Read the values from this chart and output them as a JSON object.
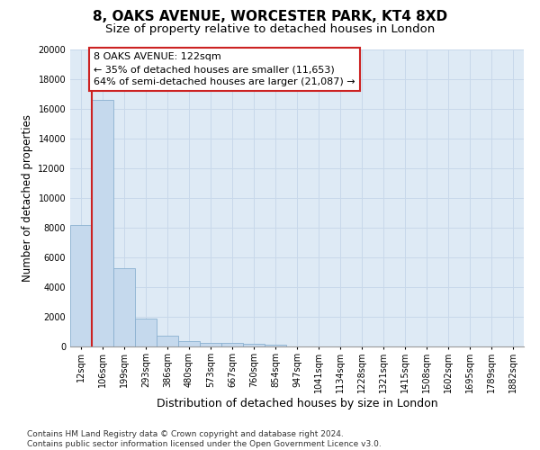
{
  "title1": "8, OAKS AVENUE, WORCESTER PARK, KT4 8XD",
  "title2": "Size of property relative to detached houses in London",
  "xlabel": "Distribution of detached houses by size in London",
  "ylabel": "Number of detached properties",
  "categories": [
    "12sqm",
    "106sqm",
    "199sqm",
    "293sqm",
    "386sqm",
    "480sqm",
    "573sqm",
    "667sqm",
    "760sqm",
    "854sqm",
    "947sqm",
    "1041sqm",
    "1134sqm",
    "1228sqm",
    "1321sqm",
    "1415sqm",
    "1508sqm",
    "1602sqm",
    "1695sqm",
    "1789sqm",
    "1882sqm"
  ],
  "values": [
    8200,
    16600,
    5300,
    1850,
    750,
    350,
    270,
    220,
    200,
    150,
    0,
    0,
    0,
    0,
    0,
    0,
    0,
    0,
    0,
    0,
    0
  ],
  "bar_color": "#c5d9ed",
  "bar_edge_color": "#8ab0d0",
  "annotation_line1": "8 OAKS AVENUE: 122sqm",
  "annotation_line2": "← 35% of detached houses are smaller (11,653)",
  "annotation_line3": "64% of semi-detached houses are larger (21,087) →",
  "annotation_box_facecolor": "#ffffff",
  "annotation_box_edgecolor": "#cc2222",
  "vline_color": "#cc2222",
  "grid_color": "#c8d8ea",
  "background_color": "#deeaf5",
  "ylim_max": 20000,
  "yticks": [
    0,
    2000,
    4000,
    6000,
    8000,
    10000,
    12000,
    14000,
    16000,
    18000,
    20000
  ],
  "footnote_line1": "Contains HM Land Registry data © Crown copyright and database right 2024.",
  "footnote_line2": "Contains public sector information licensed under the Open Government Licence v3.0.",
  "title1_fontsize": 11,
  "title2_fontsize": 9.5,
  "xlabel_fontsize": 9,
  "ylabel_fontsize": 8.5,
  "tick_fontsize": 7,
  "annot_fontsize": 8,
  "footnote_fontsize": 6.5
}
